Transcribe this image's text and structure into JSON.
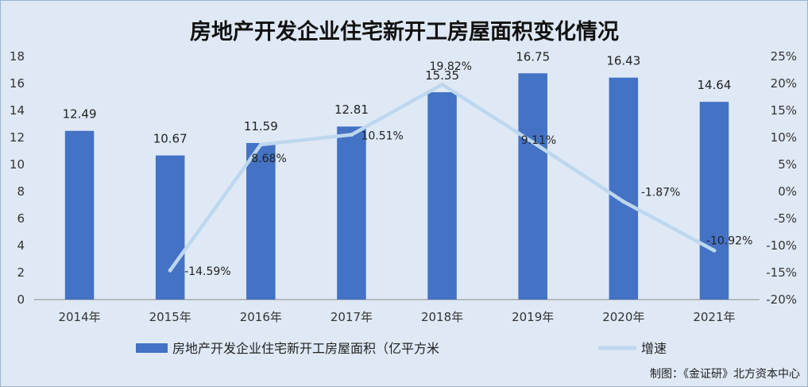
{
  "chart_data": {
    "type": "bar",
    "title": "房地产开发企业住宅新开工房屋面积变化情况",
    "categories": [
      "2014年",
      "2015年",
      "2016年",
      "2017年",
      "2018年",
      "2019年",
      "2020年",
      "2021年"
    ],
    "series": [
      {
        "name": "房地产开发企业住宅新开工房屋面积（亿平方米",
        "type": "bar",
        "axis": "left",
        "color": "#4472c4",
        "values": [
          12.49,
          10.67,
          11.59,
          12.81,
          15.35,
          16.75,
          16.43,
          14.64
        ],
        "labels": [
          "12.49",
          "10.67",
          "11.59",
          "12.81",
          "15.35",
          "16.75",
          "16.43",
          "14.64"
        ]
      },
      {
        "name": "增速",
        "type": "line",
        "axis": "right",
        "color": "#bdd7ee",
        "values": [
          null,
          -14.59,
          8.68,
          10.51,
          19.82,
          9.11,
          -1.87,
          -10.92
        ],
        "labels": [
          "",
          "-14.59%",
          "8.68%",
          "10.51%",
          "19.82%",
          "9.11%",
          "-1.87%",
          "-10.92%"
        ]
      }
    ],
    "y_left": {
      "min": 0,
      "max": 18,
      "ticks": [
        0,
        2,
        4,
        6,
        8,
        10,
        12,
        14,
        16,
        18
      ],
      "tick_labels": [
        "0",
        "2",
        "4",
        "6",
        "8",
        "10",
        "12",
        "14",
        "16",
        "18"
      ]
    },
    "y_right": {
      "min": -20,
      "max": 25,
      "ticks": [
        -20,
        -15,
        -10,
        -5,
        0,
        5,
        10,
        15,
        20,
        25
      ],
      "tick_labels": [
        "-20%",
        "-15%",
        "-10%",
        "-5%",
        "0%",
        "5%",
        "10%",
        "15%",
        "20%",
        "25%"
      ]
    },
    "grid": false,
    "legend_position": "bottom"
  },
  "credit": "制图：《金证研》北方资本中心"
}
